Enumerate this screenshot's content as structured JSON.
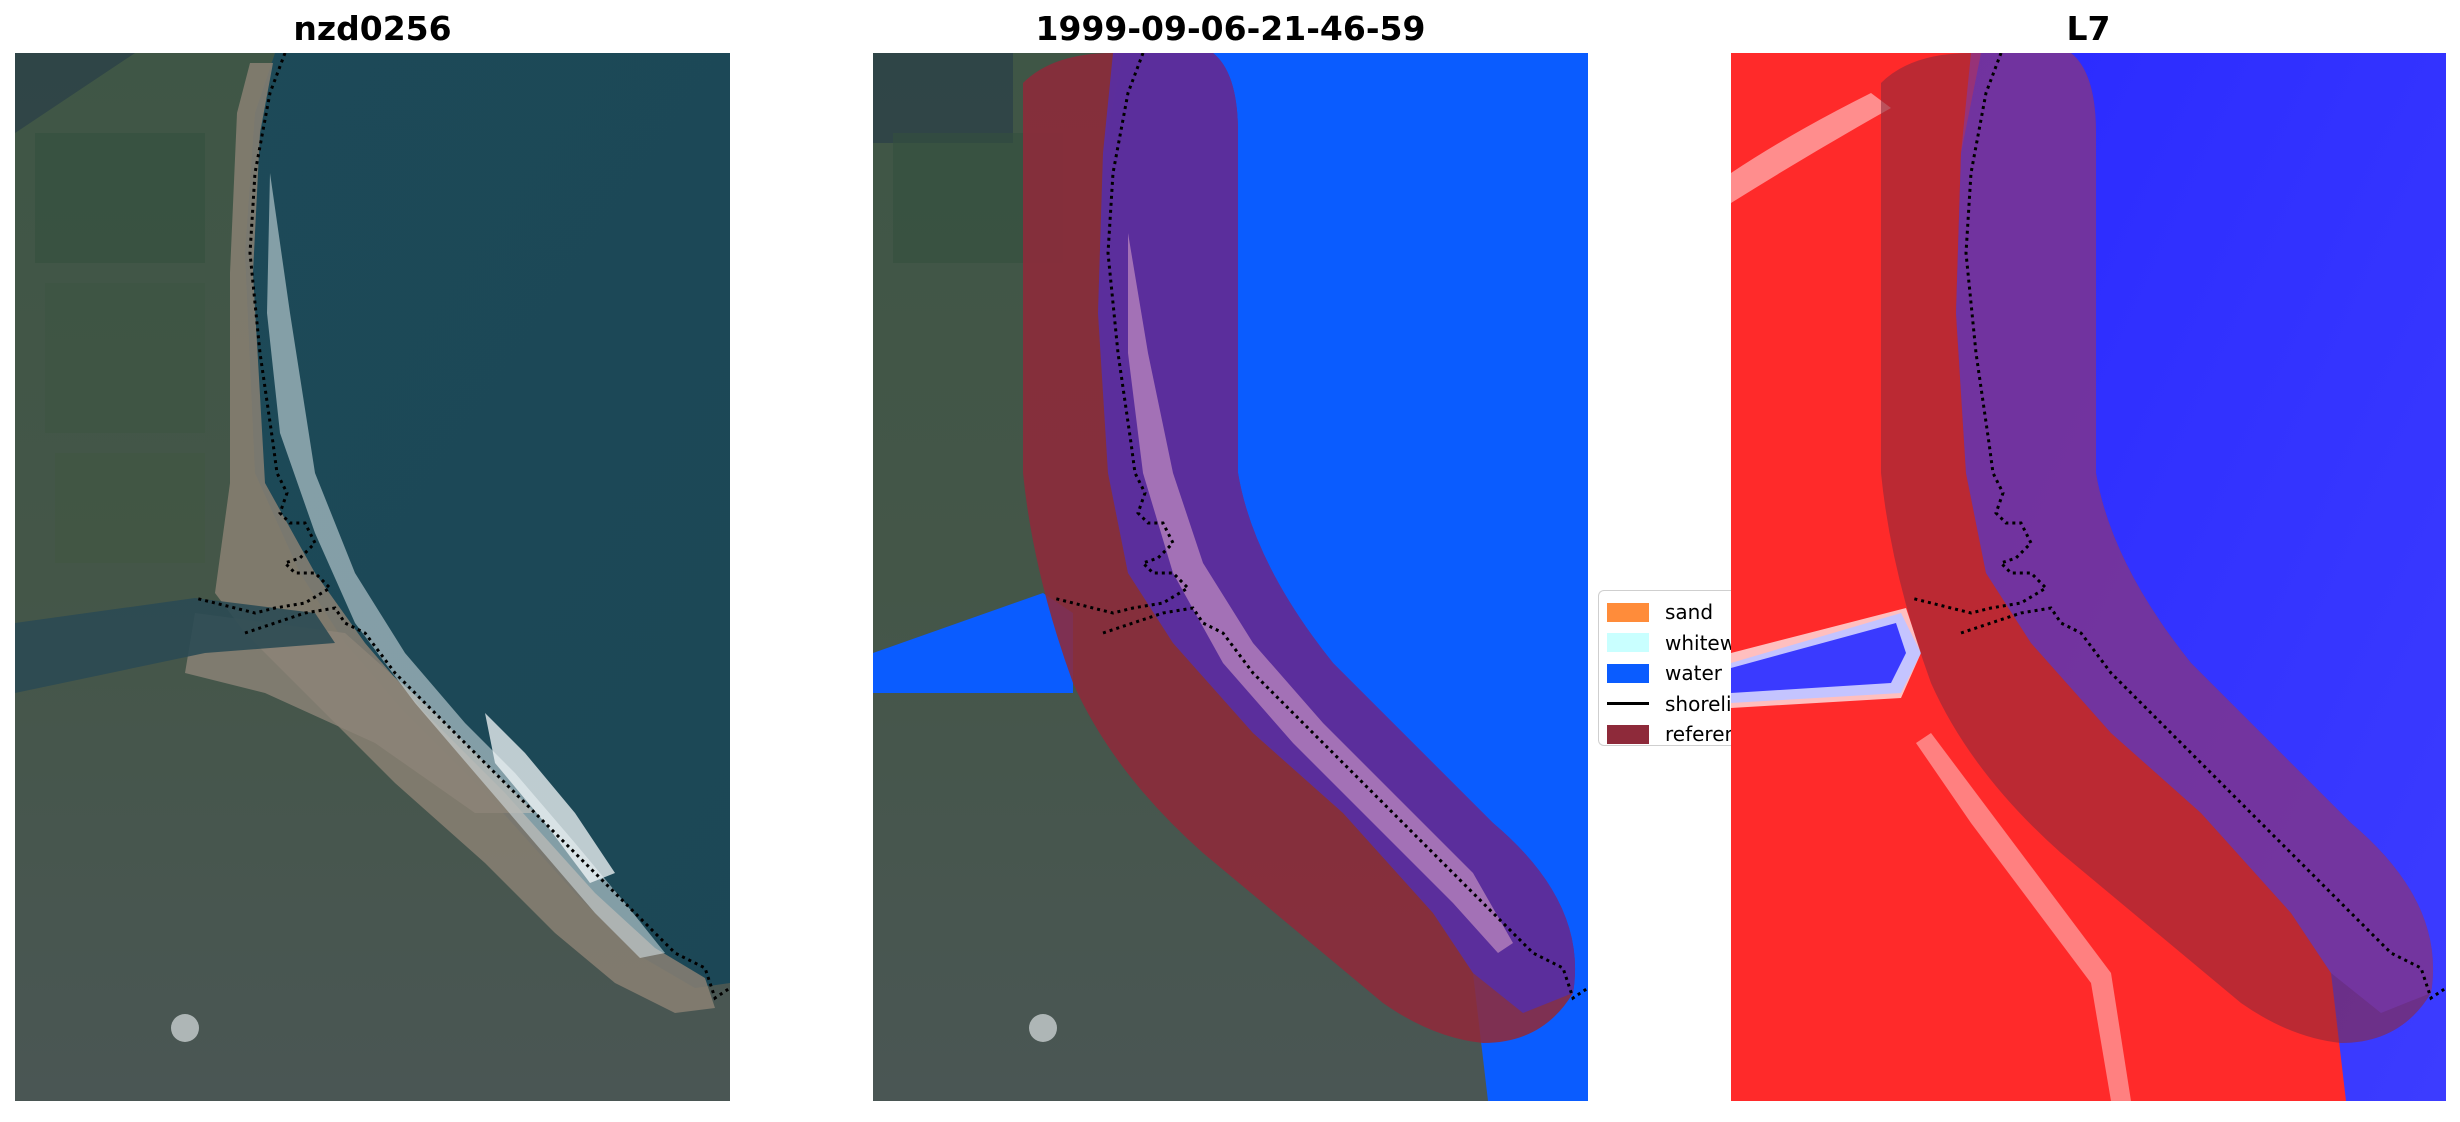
{
  "panels": [
    {
      "title": "nzd0256"
    },
    {
      "title": "1999-09-06-21-46-59"
    },
    {
      "title": "L7"
    }
  ],
  "legend": {
    "items": [
      {
        "label": "sand",
        "color": "#ff8c3a",
        "kind": "patch"
      },
      {
        "label": "whitewater",
        "color": "#c9ffff",
        "kind": "patch"
      },
      {
        "label": "water",
        "color": "#0a5cff",
        "kind": "patch"
      },
      {
        "label": "shoreline",
        "color": "#000000",
        "kind": "line"
      },
      {
        "label": "reference shoreline buffer",
        "color": "#8e2a3a",
        "kind": "patch"
      }
    ]
  },
  "colors": {
    "water_rgb": "#1e4f5c",
    "land_rgb": "#3f5647",
    "sand_rgb": "#8f8575",
    "surf_rgb": "#e6eef0",
    "classified_water": "#0a5cff",
    "buffer": "#8e2a3a",
    "buffer_over_water": "#5a2ea0",
    "index_land": "#ff2a2a",
    "index_water": "#2a2aff"
  }
}
